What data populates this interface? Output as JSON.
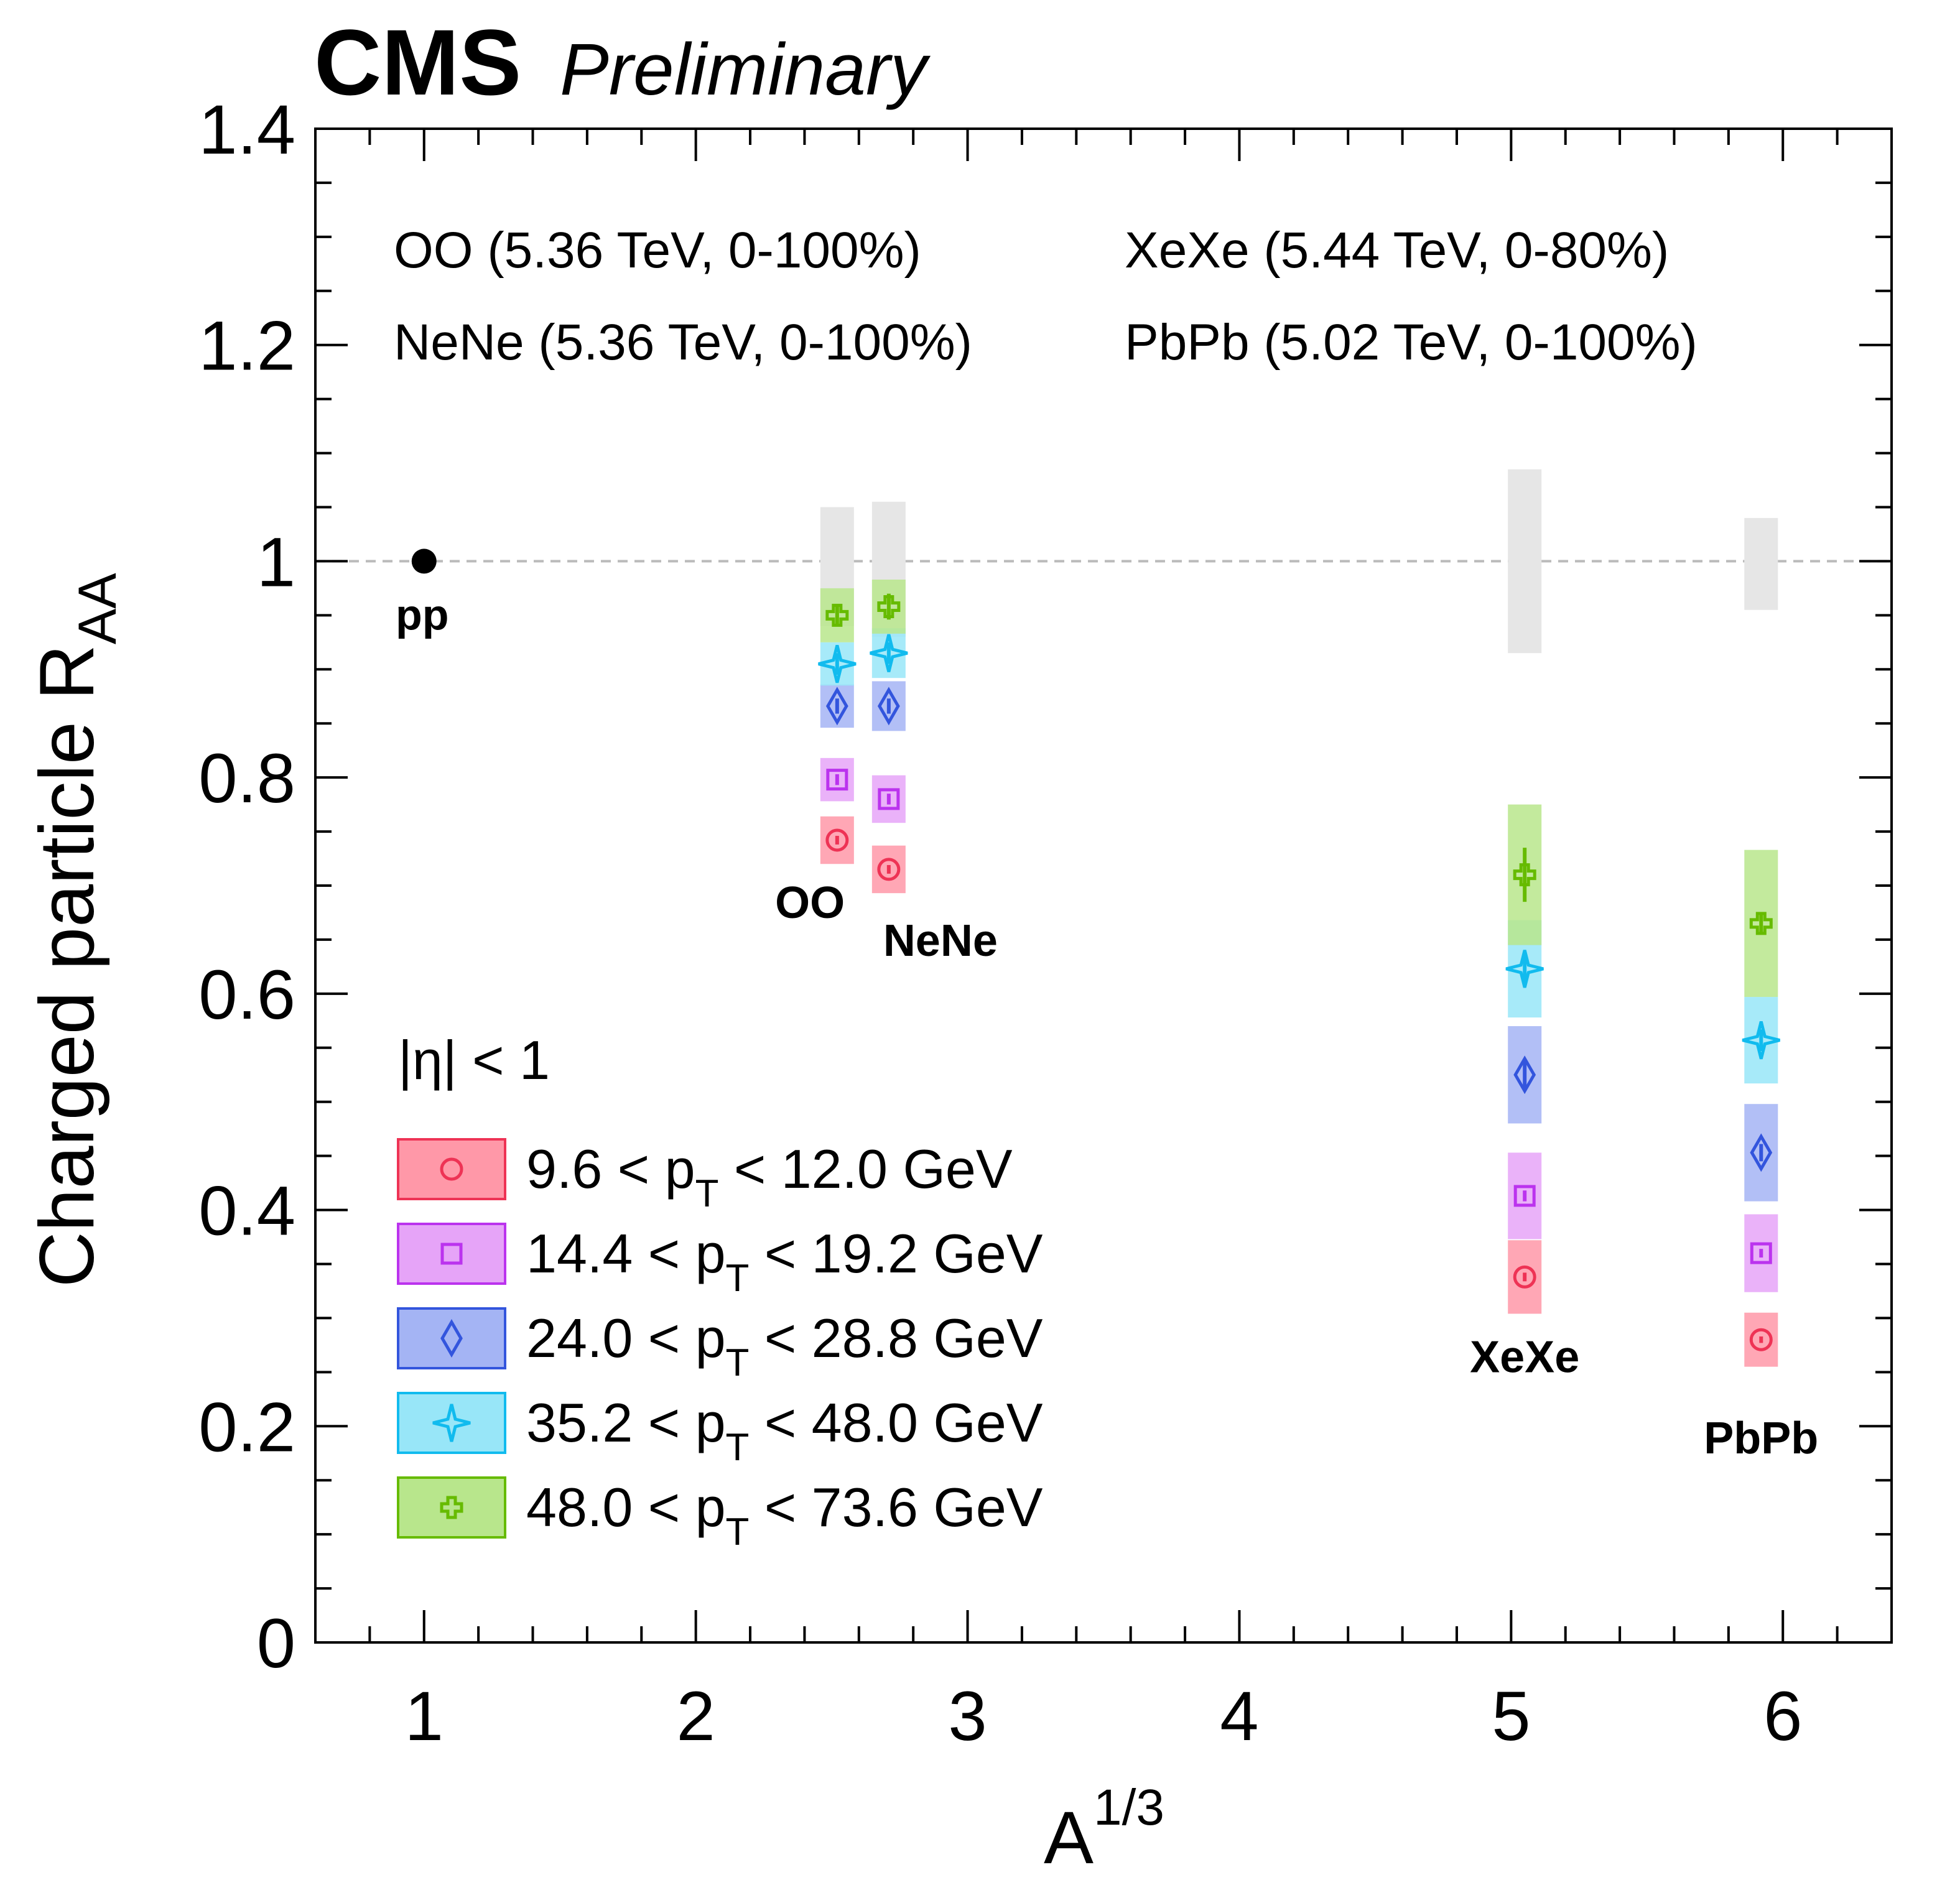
{
  "header": {
    "experiment": "CMS",
    "status": "Preliminary"
  },
  "systems_info": {
    "left": [
      "OO (5.36 TeV, 0-100%)",
      "NeNe (5.36 TeV, 0-100%)"
    ],
    "right": [
      "XeXe (5.44 TeV, 0-80%)",
      "PbPb (5.02 TeV, 0-100%)"
    ]
  },
  "legend": {
    "header": "|η| < 1",
    "entries": [
      {
        "key": "pt1",
        "pre": "9.6 < p",
        "sub": "T",
        "post": " < 12.0 GeV"
      },
      {
        "key": "pt2",
        "pre": "14.4 < p",
        "sub": "T",
        "post": " < 19.2 GeV"
      },
      {
        "key": "pt3",
        "pre": "24.0 < p",
        "sub": "T",
        "post": " < 28.8 GeV"
      },
      {
        "key": "pt4",
        "pre": "35.2 < p",
        "sub": "T",
        "post": " < 48.0 GeV"
      },
      {
        "key": "pt5",
        "pre": "48.0 < p",
        "sub": "T",
        "post": " < 73.6 GeV"
      }
    ]
  },
  "colors": {
    "pt1": {
      "fill": "#ff98a8",
      "line": "#ee3355"
    },
    "pt2": {
      "fill": "#e6a4f8",
      "line": "#bb33ee"
    },
    "pt3": {
      "fill": "#a4b4f4",
      "line": "#3355dd"
    },
    "pt4": {
      "fill": "#98e6f8",
      "line": "#11bbee"
    },
    "pt5": {
      "fill": "#b8e68c",
      "line": "#66bb00"
    },
    "norm": "#e6e6e6",
    "pp": "#000000",
    "refline": "#bbbbbb"
  },
  "chart_data": {
    "type": "scatter",
    "xlabel": "A",
    "xlabel_sup": "1/3",
    "ylabel": "Charged particle R",
    "ylabel_sub": "AA",
    "xlim": [
      0.6,
      6.4
    ],
    "ylim": [
      0,
      1.4
    ],
    "xticks": [
      "1",
      "2",
      "3",
      "4",
      "5",
      "6"
    ],
    "yticks": [
      "0",
      "0.2",
      "0.4",
      "0.6",
      "0.8",
      "1",
      "1.2",
      "1.4"
    ],
    "reference_line": 1.0,
    "pp_point": {
      "label": "pp",
      "x": 1.0,
      "y": 1.0
    },
    "systems": [
      {
        "label": "OO",
        "x": 2.52,
        "norm_unc": [
          0.94,
          1.05
        ],
        "label_pos": [
          2.42,
          0.67
        ]
      },
      {
        "label": "NeNe",
        "x": 2.71,
        "norm_unc": [
          0.93,
          1.055
        ],
        "label_pos": [
          2.9,
          0.635
        ]
      },
      {
        "label": "XeXe",
        "x": 5.05,
        "norm_unc": [
          0.915,
          1.085
        ],
        "label_pos": [
          5.05,
          0.25
        ]
      },
      {
        "label": "PbPb",
        "x": 5.92,
        "norm_unc": [
          0.955,
          1.04
        ],
        "label_pos": [
          5.92,
          0.175
        ]
      }
    ],
    "series": [
      {
        "name": "9.6 < pT < 12.0 GeV",
        "key": "pt1",
        "marker": "circle",
        "points": [
          {
            "system": "OO",
            "y": 0.742,
            "sys": 0.022,
            "stat": 0.004
          },
          {
            "system": "NeNe",
            "y": 0.715,
            "sys": 0.022,
            "stat": 0.004
          },
          {
            "system": "XeXe",
            "y": 0.338,
            "sys": 0.034,
            "stat": 0.004
          },
          {
            "system": "PbPb",
            "y": 0.28,
            "sys": 0.025,
            "stat": 0.003
          }
        ]
      },
      {
        "name": "14.4 < pT < 19.2 GeV",
        "key": "pt2",
        "marker": "square",
        "points": [
          {
            "system": "OO",
            "y": 0.798,
            "sys": 0.02,
            "stat": 0.005
          },
          {
            "system": "NeNe",
            "y": 0.78,
            "sys": 0.022,
            "stat": 0.005
          },
          {
            "system": "XeXe",
            "y": 0.413,
            "sys": 0.04,
            "stat": 0.005
          },
          {
            "system": "PbPb",
            "y": 0.36,
            "sys": 0.036,
            "stat": 0.004
          }
        ]
      },
      {
        "name": "24.0 < pT < 28.8 GeV",
        "key": "pt3",
        "marker": "diamond",
        "points": [
          {
            "system": "OO",
            "y": 0.866,
            "sys": 0.02,
            "stat": 0.007
          },
          {
            "system": "NeNe",
            "y": 0.866,
            "sys": 0.023,
            "stat": 0.007
          },
          {
            "system": "XeXe",
            "y": 0.525,
            "sys": 0.045,
            "stat": 0.012
          },
          {
            "system": "PbPb",
            "y": 0.453,
            "sys": 0.045,
            "stat": 0.008
          }
        ]
      },
      {
        "name": "35.2 < pT < 48.0 GeV",
        "key": "pt4",
        "marker": "star",
        "points": [
          {
            "system": "OO",
            "y": 0.905,
            "sys": 0.02,
            "stat": 0.01
          },
          {
            "system": "NeNe",
            "y": 0.915,
            "sys": 0.023,
            "stat": 0.01
          },
          {
            "system": "XeXe",
            "y": 0.623,
            "sys": 0.045,
            "stat": 0.015
          },
          {
            "system": "PbPb",
            "y": 0.557,
            "sys": 0.04,
            "stat": 0.01
          }
        ]
      },
      {
        "name": "48.0 < pT < 73.6 GeV",
        "key": "pt5",
        "marker": "cross",
        "points": [
          {
            "system": "OO",
            "y": 0.95,
            "sys": 0.025,
            "stat": 0.01
          },
          {
            "system": "NeNe",
            "y": 0.958,
            "sys": 0.025,
            "stat": 0.012
          },
          {
            "system": "XeXe",
            "y": 0.71,
            "sys": 0.065,
            "stat": 0.025
          },
          {
            "system": "PbPb",
            "y": 0.665,
            "sys": 0.068,
            "stat": 0.01
          }
        ]
      }
    ]
  }
}
